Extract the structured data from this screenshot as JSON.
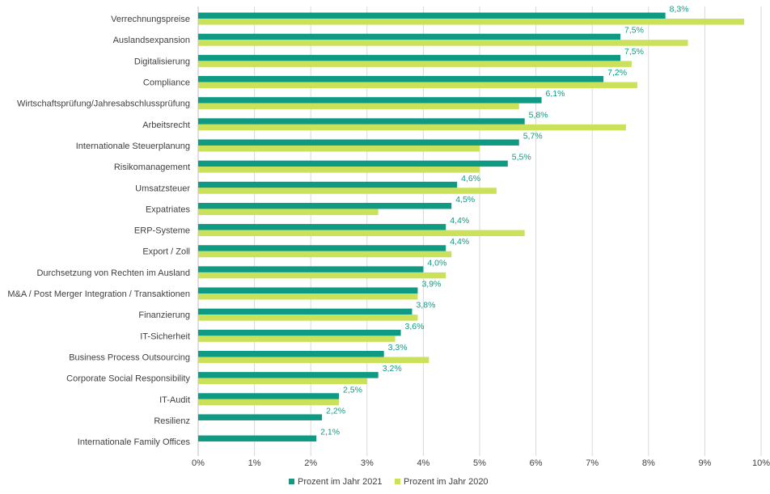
{
  "chart_data": {
    "type": "bar",
    "orientation": "horizontal",
    "categories": [
      "Verrechnungspreise",
      "Auslandsexpansion",
      "Digitalisierung",
      "Compliance",
      "Wirtschaftsprüfung/Jahresabschlussprüfung",
      "Arbeitsrecht",
      "Internationale Steuerplanung",
      "Risikomanagement",
      "Umsatzsteuer",
      "Expatriates",
      "ERP-Systeme",
      "Export / Zoll",
      "Durchsetzung von Rechten im Ausland",
      "M&A / Post Merger Integration / Transaktionen",
      "Finanzierung",
      "IT-Sicherheit",
      "Business Process Outsourcing",
      "Corporate Social Responsibility",
      "IT-Audit",
      "Resilienz",
      "Internationale Family Offices"
    ],
    "series": [
      {
        "name": "Prozent im Jahr 2021",
        "color": "#0e9a83",
        "values": [
          8.3,
          7.5,
          7.5,
          7.2,
          6.1,
          5.8,
          5.7,
          5.5,
          4.6,
          4.5,
          4.4,
          4.4,
          4.0,
          3.9,
          3.8,
          3.6,
          3.3,
          3.2,
          2.5,
          2.2,
          2.1
        ],
        "labels": [
          "8,3%",
          "7,5%",
          "7,5%",
          "7,2%",
          "6,1%",
          "5,8%",
          "5,7%",
          "5,5%",
          "4,6%",
          "4,5%",
          "4,4%",
          "4,4%",
          "4,0%",
          "3,9%",
          "3,8%",
          "3,6%",
          "3,3%",
          "3,2%",
          "2,5%",
          "2,2%",
          "2,1%"
        ]
      },
      {
        "name": "Prozent im Jahr 2020",
        "color": "#cbe15a",
        "values": [
          9.7,
          8.7,
          7.7,
          7.8,
          5.7,
          7.6,
          5.0,
          5.0,
          5.3,
          3.2,
          5.8,
          4.5,
          4.4,
          3.9,
          3.9,
          3.5,
          4.1,
          3.0,
          2.5,
          null,
          null
        ]
      }
    ],
    "xlim": [
      0,
      10
    ],
    "xticks": [
      "0%",
      "1%",
      "2%",
      "3%",
      "4%",
      "5%",
      "6%",
      "7%",
      "8%",
      "9%",
      "10%"
    ],
    "grid": true,
    "legend_position": "bottom",
    "label_color": "#0e9a83"
  }
}
